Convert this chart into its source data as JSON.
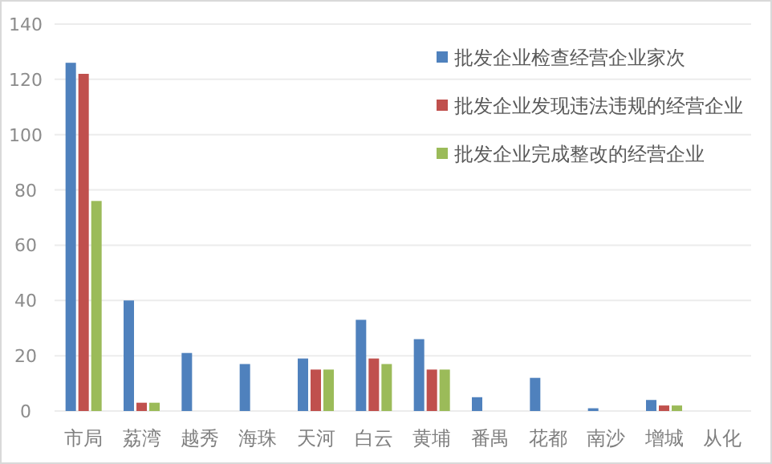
{
  "chart_data": {
    "type": "bar",
    "categories": [
      "市局",
      "荔湾",
      "越秀",
      "海珠",
      "天河",
      "白云",
      "黄埔",
      "番禺",
      "花都",
      "南沙",
      "增城",
      "从化"
    ],
    "series": [
      {
        "name": "批发企业检查经营企业家次",
        "color": "#4f81bd",
        "values": [
          126,
          40,
          21,
          17,
          19,
          33,
          26,
          5,
          12,
          1,
          4,
          0
        ]
      },
      {
        "name": "批发企业发现违法违规的经营企业",
        "color": "#c0504d",
        "values": [
          122,
          3,
          0,
          0,
          15,
          19,
          15,
          0,
          0,
          0,
          2,
          0
        ]
      },
      {
        "name": "批发企业完成整改的经营企业",
        "color": "#9bbb59",
        "values": [
          76,
          3,
          0,
          0,
          15,
          17,
          15,
          0,
          0,
          0,
          2,
          0
        ]
      }
    ],
    "ylim": [
      0,
      140
    ],
    "yticks": [
      0,
      20,
      40,
      60,
      80,
      100,
      120,
      140
    ],
    "grid": "y",
    "legend": "top right"
  }
}
